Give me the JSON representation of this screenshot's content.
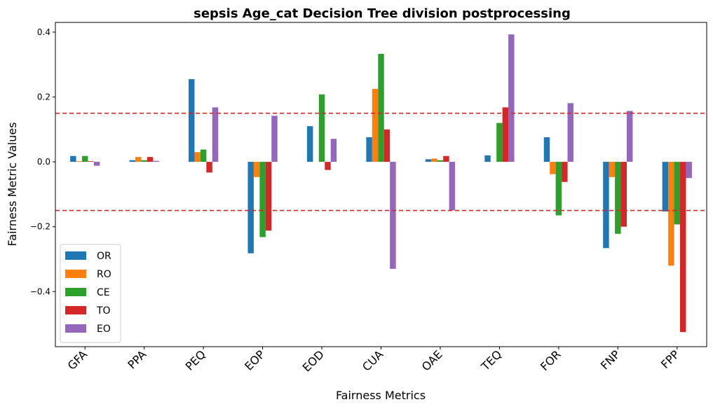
{
  "chart_data": {
    "type": "bar",
    "title": "sepsis Age_cat Decision Tree division postprocessing",
    "xlabel": "Fairness Metrics",
    "ylabel": "Fairness Metric Values",
    "categories": [
      "GFA",
      "PPA",
      "PEQ",
      "EOP",
      "EOD",
      "CUA",
      "OAE",
      "TEQ",
      "FOR",
      "FNP",
      "FPP"
    ],
    "ylim": [
      -0.57,
      0.43
    ],
    "yticks": [
      -0.4,
      -0.2,
      0.0,
      0.2,
      0.4
    ],
    "ytick_labels": [
      "−0.4",
      "−0.2",
      "0.0",
      "0.2",
      "0.4"
    ],
    "threshold_lines": [
      0.15,
      -0.15
    ],
    "threshold_color": "#d62728",
    "legend_position": "lower-left",
    "grid": false,
    "series": [
      {
        "name": "OR",
        "color": "#1f77b4",
        "values": [
          0.018,
          0.005,
          0.255,
          -0.282,
          0.11,
          0.076,
          0.008,
          0.02,
          0.076,
          -0.266,
          -0.153
        ]
      },
      {
        "name": "RO",
        "color": "#ff7f0e",
        "values": [
          0.002,
          0.015,
          0.03,
          -0.047,
          0.0,
          0.225,
          0.01,
          0.0,
          -0.038,
          -0.047,
          -0.32
        ]
      },
      {
        "name": "CE",
        "color": "#2ca02c",
        "values": [
          0.018,
          0.005,
          0.038,
          -0.232,
          0.208,
          0.333,
          0.005,
          0.12,
          -0.165,
          -0.222,
          -0.193
        ]
      },
      {
        "name": "TO",
        "color": "#d62728",
        "values": [
          0.002,
          0.015,
          -0.033,
          -0.212,
          -0.025,
          0.1,
          0.018,
          0.168,
          -0.062,
          -0.2,
          -0.525
        ]
      },
      {
        "name": "EO",
        "color": "#9467bd",
        "values": [
          -0.012,
          0.003,
          0.168,
          0.142,
          0.071,
          -0.33,
          -0.15,
          0.393,
          0.181,
          0.157,
          -0.05
        ]
      }
    ]
  }
}
